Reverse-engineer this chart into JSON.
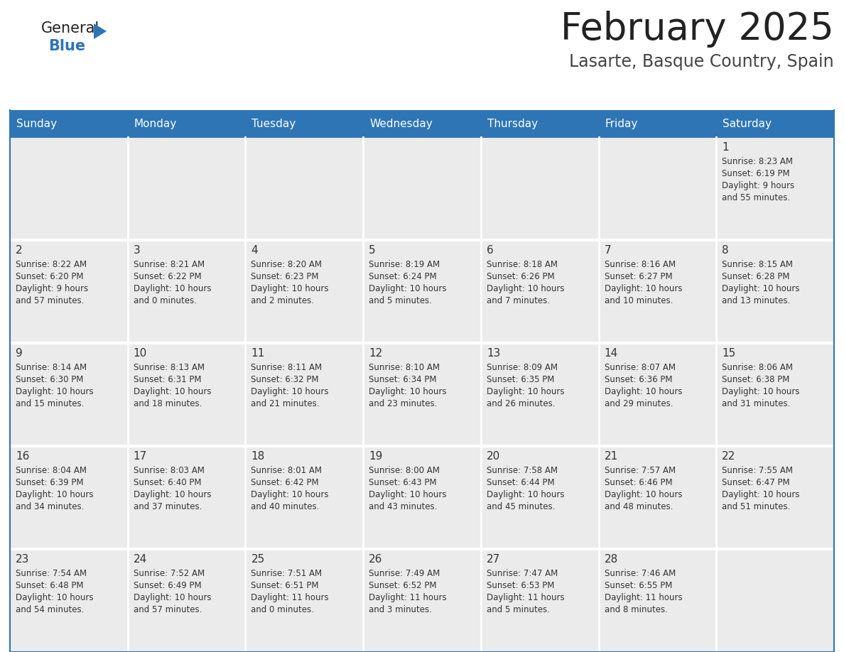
{
  "title": "February 2025",
  "subtitle": "Lasarte, Basque Country, Spain",
  "header_bg": "#2E75B6",
  "header_text_color": "#FFFFFF",
  "cell_bg": "#EBEBEB",
  "border_color": "#2E75B6",
  "text_color": "#333333",
  "day_number_color": "#333333",
  "separator_color": "#FFFFFF",
  "days_of_week": [
    "Sunday",
    "Monday",
    "Tuesday",
    "Wednesday",
    "Thursday",
    "Friday",
    "Saturday"
  ],
  "weeks": [
    [
      {
        "day": "",
        "info": ""
      },
      {
        "day": "",
        "info": ""
      },
      {
        "day": "",
        "info": ""
      },
      {
        "day": "",
        "info": ""
      },
      {
        "day": "",
        "info": ""
      },
      {
        "day": "",
        "info": ""
      },
      {
        "day": "1",
        "info": "Sunrise: 8:23 AM\nSunset: 6:19 PM\nDaylight: 9 hours\nand 55 minutes."
      }
    ],
    [
      {
        "day": "2",
        "info": "Sunrise: 8:22 AM\nSunset: 6:20 PM\nDaylight: 9 hours\nand 57 minutes."
      },
      {
        "day": "3",
        "info": "Sunrise: 8:21 AM\nSunset: 6:22 PM\nDaylight: 10 hours\nand 0 minutes."
      },
      {
        "day": "4",
        "info": "Sunrise: 8:20 AM\nSunset: 6:23 PM\nDaylight: 10 hours\nand 2 minutes."
      },
      {
        "day": "5",
        "info": "Sunrise: 8:19 AM\nSunset: 6:24 PM\nDaylight: 10 hours\nand 5 minutes."
      },
      {
        "day": "6",
        "info": "Sunrise: 8:18 AM\nSunset: 6:26 PM\nDaylight: 10 hours\nand 7 minutes."
      },
      {
        "day": "7",
        "info": "Sunrise: 8:16 AM\nSunset: 6:27 PM\nDaylight: 10 hours\nand 10 minutes."
      },
      {
        "day": "8",
        "info": "Sunrise: 8:15 AM\nSunset: 6:28 PM\nDaylight: 10 hours\nand 13 minutes."
      }
    ],
    [
      {
        "day": "9",
        "info": "Sunrise: 8:14 AM\nSunset: 6:30 PM\nDaylight: 10 hours\nand 15 minutes."
      },
      {
        "day": "10",
        "info": "Sunrise: 8:13 AM\nSunset: 6:31 PM\nDaylight: 10 hours\nand 18 minutes."
      },
      {
        "day": "11",
        "info": "Sunrise: 8:11 AM\nSunset: 6:32 PM\nDaylight: 10 hours\nand 21 minutes."
      },
      {
        "day": "12",
        "info": "Sunrise: 8:10 AM\nSunset: 6:34 PM\nDaylight: 10 hours\nand 23 minutes."
      },
      {
        "day": "13",
        "info": "Sunrise: 8:09 AM\nSunset: 6:35 PM\nDaylight: 10 hours\nand 26 minutes."
      },
      {
        "day": "14",
        "info": "Sunrise: 8:07 AM\nSunset: 6:36 PM\nDaylight: 10 hours\nand 29 minutes."
      },
      {
        "day": "15",
        "info": "Sunrise: 8:06 AM\nSunset: 6:38 PM\nDaylight: 10 hours\nand 31 minutes."
      }
    ],
    [
      {
        "day": "16",
        "info": "Sunrise: 8:04 AM\nSunset: 6:39 PM\nDaylight: 10 hours\nand 34 minutes."
      },
      {
        "day": "17",
        "info": "Sunrise: 8:03 AM\nSunset: 6:40 PM\nDaylight: 10 hours\nand 37 minutes."
      },
      {
        "day": "18",
        "info": "Sunrise: 8:01 AM\nSunset: 6:42 PM\nDaylight: 10 hours\nand 40 minutes."
      },
      {
        "day": "19",
        "info": "Sunrise: 8:00 AM\nSunset: 6:43 PM\nDaylight: 10 hours\nand 43 minutes."
      },
      {
        "day": "20",
        "info": "Sunrise: 7:58 AM\nSunset: 6:44 PM\nDaylight: 10 hours\nand 45 minutes."
      },
      {
        "day": "21",
        "info": "Sunrise: 7:57 AM\nSunset: 6:46 PM\nDaylight: 10 hours\nand 48 minutes."
      },
      {
        "day": "22",
        "info": "Sunrise: 7:55 AM\nSunset: 6:47 PM\nDaylight: 10 hours\nand 51 minutes."
      }
    ],
    [
      {
        "day": "23",
        "info": "Sunrise: 7:54 AM\nSunset: 6:48 PM\nDaylight: 10 hours\nand 54 minutes."
      },
      {
        "day": "24",
        "info": "Sunrise: 7:52 AM\nSunset: 6:49 PM\nDaylight: 10 hours\nand 57 minutes."
      },
      {
        "day": "25",
        "info": "Sunrise: 7:51 AM\nSunset: 6:51 PM\nDaylight: 11 hours\nand 0 minutes."
      },
      {
        "day": "26",
        "info": "Sunrise: 7:49 AM\nSunset: 6:52 PM\nDaylight: 11 hours\nand 3 minutes."
      },
      {
        "day": "27",
        "info": "Sunrise: 7:47 AM\nSunset: 6:53 PM\nDaylight: 11 hours\nand 5 minutes."
      },
      {
        "day": "28",
        "info": "Sunrise: 7:46 AM\nSunset: 6:55 PM\nDaylight: 11 hours\nand 8 minutes."
      },
      {
        "day": "",
        "info": ""
      }
    ]
  ]
}
